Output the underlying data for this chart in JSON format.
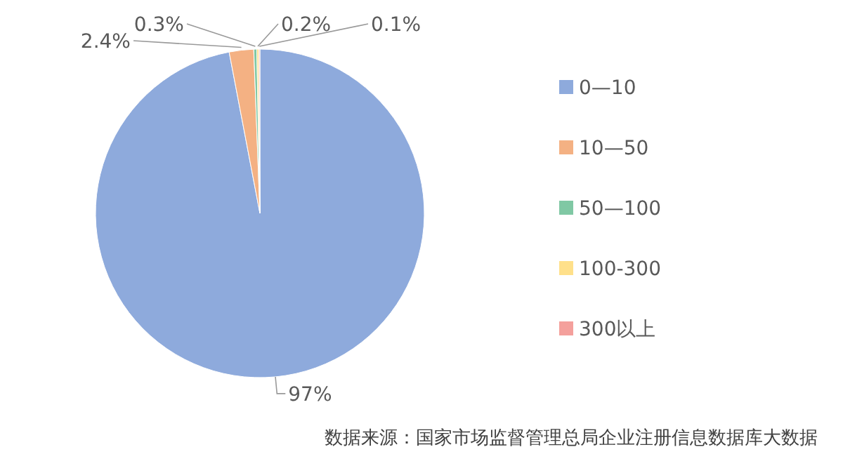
{
  "chart_data": {
    "type": "pie",
    "categories": [
      "0—10",
      "10—50",
      "50—100",
      "100-300",
      "300以上"
    ],
    "values": [
      97,
      2.4,
      0.3,
      0.2,
      0.1
    ],
    "colors": [
      "#8eaadc",
      "#f4b183",
      "#80c8a4",
      "#ffe08a",
      "#f4a09c"
    ],
    "value_labels": [
      "97%",
      "2.4%",
      "0.3%",
      "0.2%",
      "0.1%"
    ],
    "legend": "right",
    "annotations": [
      "数据来源：国家市场监督管理总局企业注册信息数据库大数据"
    ]
  }
}
